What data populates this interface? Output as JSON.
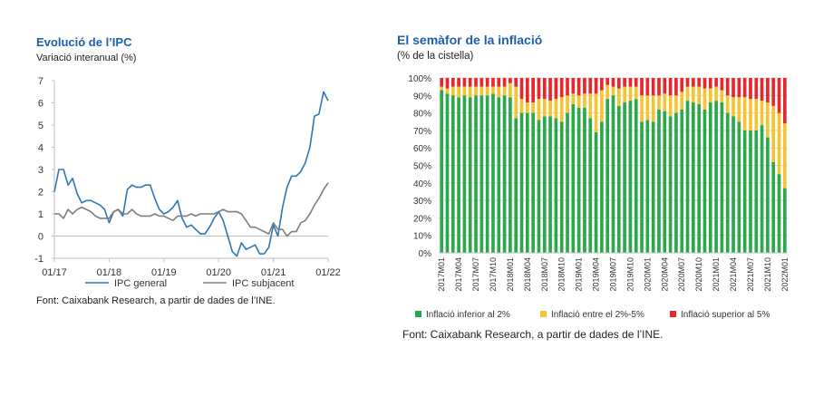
{
  "left": {
    "title": "Evolució de l’IPC",
    "subtitle": "Variació interanual (%)",
    "source": "Font: Caixabank Research, a partir de dades de l’INE."
  },
  "right": {
    "title": "El semàfor de la inflació",
    "subtitle": "(% de la cistella)",
    "source": "Font: Caixabank Research, a partir de dades de l’INE."
  },
  "colors": {
    "ipc_general": "#2e75b6",
    "ipc_subjacent": "#7f7f7f",
    "green": "#2aa84a",
    "yellow": "#f5c431",
    "red": "#e8262b",
    "grid": "#d9d9d9",
    "title": "#1f5fa8"
  },
  "chart_data": [
    {
      "type": "line",
      "title": "Evolució de l’IPC",
      "ylabel": "Variació interanual (%)",
      "ylim": [
        -1,
        7
      ],
      "yticks": [
        7,
        6,
        5,
        4,
        3,
        2,
        1,
        0,
        -1
      ],
      "xtick_labels": [
        "01/17",
        "01/18",
        "01/19",
        "01/20",
        "01/21",
        "01/22"
      ],
      "x": [
        "2017-01",
        "2017-02",
        "2017-03",
        "2017-04",
        "2017-05",
        "2017-06",
        "2017-07",
        "2017-08",
        "2017-09",
        "2017-10",
        "2017-11",
        "2017-12",
        "2018-01",
        "2018-02",
        "2018-03",
        "2018-04",
        "2018-05",
        "2018-06",
        "2018-07",
        "2018-08",
        "2018-09",
        "2018-10",
        "2018-11",
        "2018-12",
        "2019-01",
        "2019-02",
        "2019-03",
        "2019-04",
        "2019-05",
        "2019-06",
        "2019-07",
        "2019-08",
        "2019-09",
        "2019-10",
        "2019-11",
        "2019-12",
        "2020-01",
        "2020-02",
        "2020-03",
        "2020-04",
        "2020-05",
        "2020-06",
        "2020-07",
        "2020-08",
        "2020-09",
        "2020-10",
        "2020-11",
        "2020-12",
        "2021-01",
        "2021-02",
        "2021-03",
        "2021-04",
        "2021-05",
        "2021-06",
        "2021-07",
        "2021-08",
        "2021-09",
        "2021-10",
        "2021-11",
        "2021-12",
        "2022-01"
      ],
      "series": [
        {
          "name": "IPC general",
          "values": [
            2.0,
            3.0,
            3.0,
            2.3,
            2.6,
            1.9,
            1.5,
            1.6,
            1.6,
            1.5,
            1.4,
            1.2,
            0.6,
            1.1,
            1.2,
            0.9,
            2.1,
            2.3,
            2.2,
            2.2,
            2.3,
            2.3,
            1.7,
            1.2,
            1.0,
            1.1,
            1.3,
            1.6,
            0.8,
            0.4,
            0.5,
            0.3,
            0.1,
            0.1,
            0.4,
            0.8,
            1.1,
            0.7,
            0.0,
            -0.7,
            -0.9,
            -0.3,
            -0.6,
            -0.5,
            -0.4,
            -0.8,
            -0.8,
            -0.5,
            0.5,
            0.0,
            1.3,
            2.2,
            2.7,
            2.7,
            2.9,
            3.3,
            4.0,
            5.4,
            5.5,
            6.5,
            6.1
          ]
        },
        {
          "name": "IPC subjacent",
          "values": [
            1.0,
            1.0,
            0.8,
            1.2,
            1.0,
            1.2,
            1.3,
            1.2,
            1.1,
            0.9,
            0.8,
            0.8,
            0.8,
            1.1,
            1.2,
            1.0,
            1.0,
            1.2,
            1.0,
            0.9,
            0.9,
            0.9,
            1.0,
            0.9,
            0.9,
            0.8,
            0.7,
            0.9,
            0.9,
            0.9,
            1.0,
            0.9,
            1.0,
            1.0,
            1.0,
            1.0,
            1.1,
            1.2,
            1.1,
            1.1,
            1.1,
            1.0,
            0.7,
            0.4,
            0.4,
            0.3,
            0.2,
            0.1,
            0.6,
            0.3,
            0.3,
            0.0,
            0.2,
            0.2,
            0.6,
            0.7,
            1.0,
            1.4,
            1.7,
            2.1,
            2.4
          ]
        }
      ]
    },
    {
      "type": "bar",
      "stacked": true,
      "title": "El semàfor de la inflació",
      "ylabel": "(% de la cistella)",
      "ylim": [
        0,
        100
      ],
      "ytick_labels": [
        "100%",
        "90%",
        "80%",
        "70%",
        "60%",
        "50%",
        "40%",
        "30%",
        "20%",
        "10%",
        "0%"
      ],
      "categories": [
        "2017M01",
        "2017M02",
        "2017M03",
        "2017M04",
        "2017M05",
        "2017M06",
        "2017M07",
        "2017M08",
        "2017M09",
        "2017M10",
        "2017M11",
        "2017M12",
        "2018M01",
        "2018M02",
        "2018M03",
        "2018M04",
        "2018M05",
        "2018M06",
        "2018M07",
        "2018M08",
        "2018M09",
        "2018M10",
        "2018M11",
        "2018M12",
        "2019M01",
        "2019M02",
        "2019M03",
        "2019M04",
        "2019M05",
        "2019M06",
        "2019M07",
        "2019M08",
        "2019M09",
        "2019M10",
        "2019M11",
        "2019M12",
        "2020M01",
        "2020M02",
        "2020M03",
        "2020M04",
        "2020M05",
        "2020M06",
        "2020M07",
        "2020M08",
        "2020M09",
        "2020M10",
        "2020M11",
        "2020M12",
        "2021M01",
        "2021M02",
        "2021M03",
        "2021M04",
        "2021M05",
        "2021M06",
        "2021M07",
        "2021M08",
        "2021M09",
        "2021M10",
        "2021M11",
        "2021M12",
        "2022M01"
      ],
      "legend": [
        "Inflació inferior al 2%",
        "Inflació entre el 2%-5%",
        "Inflació superior al 5%"
      ],
      "legend_position": "bottom",
      "series": [
        {
          "name": "Inflació inferior al 2%",
          "values": [
            93,
            91,
            90,
            89,
            90,
            89,
            90,
            90,
            90,
            91,
            89,
            90,
            89,
            77,
            80,
            80,
            80,
            76,
            78,
            78,
            77,
            75,
            80,
            85,
            83,
            83,
            77,
            69,
            75,
            88,
            90,
            84,
            86,
            87,
            88,
            75,
            76,
            75,
            82,
            81,
            78,
            80,
            82,
            87,
            86,
            85,
            82,
            86,
            87,
            86,
            80,
            78,
            75,
            70,
            70,
            70,
            73,
            66,
            52,
            45,
            37
          ]
        },
        {
          "name": "Inflació entre el 2%-5%",
          "values": [
            2,
            3,
            5,
            6,
            5,
            6,
            5,
            5,
            5,
            4,
            6,
            5,
            8,
            18,
            8,
            6,
            6,
            12,
            10,
            9,
            11,
            14,
            10,
            6,
            7,
            8,
            14,
            22,
            18,
            8,
            5,
            10,
            9,
            8,
            7,
            15,
            14,
            15,
            8,
            10,
            12,
            10,
            10,
            8,
            9,
            10,
            12,
            8,
            8,
            7,
            10,
            11,
            14,
            19,
            18,
            18,
            14,
            20,
            32,
            35,
            37
          ]
        },
        {
          "name": "Inflació superior al 5%",
          "values": [
            5,
            6,
            5,
            5,
            5,
            5,
            5,
            5,
            5,
            5,
            5,
            5,
            3,
            5,
            12,
            14,
            14,
            12,
            12,
            13,
            12,
            11,
            10,
            9,
            10,
            9,
            9,
            9,
            7,
            4,
            5,
            6,
            5,
            5,
            5,
            10,
            10,
            10,
            10,
            9,
            10,
            10,
            8,
            5,
            5,
            5,
            6,
            6,
            5,
            7,
            10,
            11,
            11,
            11,
            12,
            12,
            13,
            14,
            16,
            20,
            26
          ]
        }
      ]
    }
  ]
}
